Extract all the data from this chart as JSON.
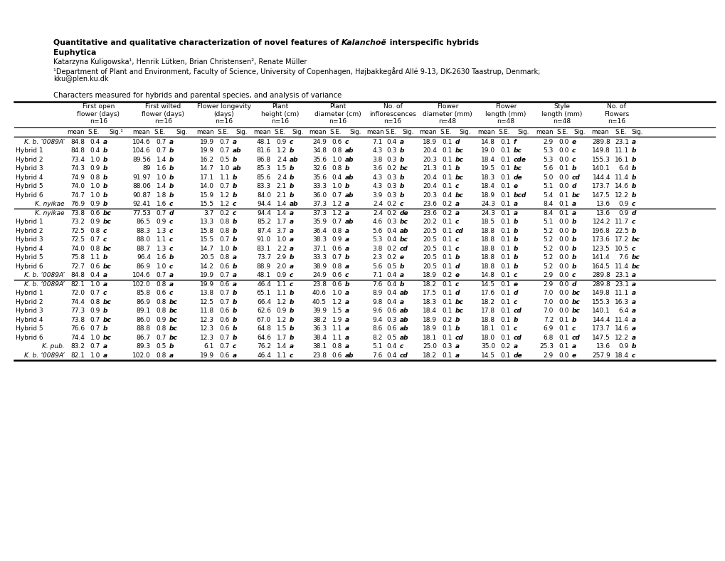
{
  "rows": [
    {
      "label": "K. b. ‘0089A’",
      "italic": true,
      "data": [
        "84.8",
        "0.4",
        "a",
        "104.6",
        "0.7",
        "a",
        "19.9",
        "0.7",
        "a",
        "48.1",
        "0.9",
        "c",
        "24.9",
        "0.6",
        "c",
        "7.1",
        "0.4",
        "a",
        "18.9",
        "0.1",
        "d",
        "14.8",
        "0.1",
        "f",
        "2.9",
        "0.0",
        "e",
        "289.8",
        "23.1",
        "a"
      ],
      "sep_before": false,
      "sep_after": false
    },
    {
      "label": "Hybrid 1",
      "italic": false,
      "data": [
        "84.8",
        "0.4",
        "b",
        "104.6",
        "0.7",
        "b",
        "19.9",
        "0.7",
        "ab",
        "81.6",
        "1.2",
        "b",
        "34.8",
        "0.8",
        "ab",
        "4.3",
        "0.3",
        "b",
        "20.4",
        "0.1",
        "bc",
        "19.0",
        "0.1",
        "bc",
        "5.3",
        "0.0",
        "c",
        "149.8",
        "11.1",
        "b"
      ],
      "sep_before": false,
      "sep_after": false
    },
    {
      "label": "Hybrid 2",
      "italic": false,
      "data": [
        "73.4",
        "1.0",
        "b",
        "89.56",
        "1.4",
        "b",
        "16.2",
        "0.5",
        "b",
        "86.8",
        "2.4",
        "ab",
        "35.6",
        "1.0",
        "ab",
        "3.8",
        "0.3",
        "b",
        "20.3",
        "0.1",
        "bc",
        "18.4",
        "0.1",
        "cde",
        "5.3",
        "0.0",
        "c",
        "155.3",
        "16.1",
        "b"
      ],
      "sep_before": false,
      "sep_after": false
    },
    {
      "label": "Hybrid 3",
      "italic": false,
      "data": [
        "74.3",
        "0.9",
        "b",
        "89",
        "1.6",
        "b",
        "14.7",
        "1.0",
        "ab",
        "85.3",
        "1.5",
        "b",
        "32.6",
        "0.8",
        "b",
        "3.6",
        "0.2",
        "bc",
        "21.3",
        "0.1",
        "b",
        "19.5",
        "0.1",
        "bc",
        "5.6",
        "0.1",
        "b",
        "140.1",
        "6.4",
        "b"
      ],
      "sep_before": false,
      "sep_after": false
    },
    {
      "label": "Hybrid 4",
      "italic": false,
      "data": [
        "74.9",
        "0.8",
        "b",
        "91.97",
        "1.0",
        "b",
        "17.1",
        "1.1",
        "b",
        "85.6",
        "2.4",
        "b",
        "35.6",
        "0.4",
        "ab",
        "4.3",
        "0.3",
        "b",
        "20.4",
        "0.1",
        "bc",
        "18.3",
        "0.1",
        "de",
        "5.0",
        "0.0",
        "cd",
        "144.4",
        "11.4",
        "b"
      ],
      "sep_before": false,
      "sep_after": false
    },
    {
      "label": "Hybrid 5",
      "italic": false,
      "data": [
        "74.0",
        "1.0",
        "b",
        "88.06",
        "1.4",
        "b",
        "14.0",
        "0.7",
        "b",
        "83.3",
        "2.1",
        "b",
        "33.3",
        "1.0",
        "b",
        "4.3",
        "0.3",
        "b",
        "20.4",
        "0.1",
        "c",
        "18.4",
        "0.1",
        "e",
        "5.1",
        "0.0",
        "d",
        "173.7",
        "14.6",
        "b"
      ],
      "sep_before": false,
      "sep_after": false
    },
    {
      "label": "Hybrid 6",
      "italic": false,
      "data": [
        "74.7",
        "1.0",
        "b",
        "90.87",
        "1.8",
        "b",
        "15.9",
        "1.2",
        "b",
        "84.0",
        "2.1",
        "b",
        "36.0",
        "0.7",
        "ab",
        "3.9",
        "0.3",
        "b",
        "20.3",
        "0.4",
        "bc",
        "18.9",
        "0.1",
        "bcd",
        "5.4",
        "0.1",
        "bc",
        "147.5",
        "12.2",
        "b"
      ],
      "sep_before": false,
      "sep_after": false
    },
    {
      "label": "K. nyikae",
      "italic": true,
      "data": [
        "76.9",
        "0.9",
        "b",
        "92.41",
        "1.6",
        "c",
        "15.5",
        "1.2",
        "c",
        "94.4",
        "1.4",
        "ab",
        "37.3",
        "1.2",
        "a",
        "2.4",
        "0.2",
        "c",
        "23.6",
        "0.2",
        "a",
        "24.3",
        "0.1",
        "a",
        "8.4",
        "0.1",
        "a",
        "13.6",
        "0.9",
        "c"
      ],
      "sep_before": false,
      "sep_after": true
    },
    {
      "label": "K. nyikae",
      "italic": true,
      "data": [
        "73.8",
        "0.6",
        "bc",
        "77.53",
        "0.7",
        "d",
        "3.7",
        "0.2",
        "c",
        "94.4",
        "1.4",
        "a",
        "37.3",
        "1.2",
        "a",
        "2.4",
        "0.2",
        "de",
        "23.6",
        "0.2",
        "a",
        "24.3",
        "0.1",
        "a",
        "8.4",
        "0.1",
        "a",
        "13.6",
        "0.9",
        "d"
      ],
      "sep_before": false,
      "sep_after": false
    },
    {
      "label": "Hybrid 1",
      "italic": false,
      "data": [
        "73.2",
        "0.9",
        "bc",
        "86.5",
        "0.9",
        "c",
        "13.3",
        "0.8",
        "b",
        "85.2",
        "1.7",
        "a",
        "35.9",
        "0.7",
        "ab",
        "4.6",
        "0.3",
        "bc",
        "20.2",
        "0.1",
        "c",
        "18.5",
        "0.1",
        "b",
        "5.1",
        "0.0",
        "b",
        "124.2",
        "11.7",
        "c"
      ],
      "sep_before": false,
      "sep_after": false
    },
    {
      "label": "Hybrid 2",
      "italic": false,
      "data": [
        "72.5",
        "0.8",
        "c",
        "88.3",
        "1.3",
        "c",
        "15.8",
        "0.8",
        "b",
        "87.4",
        "3.7",
        "a",
        "36.4",
        "0.8",
        "a",
        "5.6",
        "0.4",
        "ab",
        "20.5",
        "0.1",
        "cd",
        "18.8",
        "0.1",
        "b",
        "5.2",
        "0.0",
        "b",
        "196.8",
        "22.5",
        "b"
      ],
      "sep_before": false,
      "sep_after": false
    },
    {
      "label": "Hybrid 3",
      "italic": false,
      "data": [
        "72.5",
        "0.7",
        "c",
        "88.0",
        "1.1",
        "c",
        "15.5",
        "0.7",
        "b",
        "91.0",
        "1.0",
        "a",
        "38.3",
        "0.9",
        "a",
        "5.3",
        "0.4",
        "bc",
        "20.5",
        "0.1",
        "c",
        "18.8",
        "0.1",
        "b",
        "5.2",
        "0.0",
        "b",
        "173.6",
        "17.2",
        "bc"
      ],
      "sep_before": false,
      "sep_after": false
    },
    {
      "label": "Hybrid 4",
      "italic": false,
      "data": [
        "74.0",
        "0.8",
        "bc",
        "88.7",
        "1.3",
        "c",
        "14.7",
        "1.0",
        "b",
        "83.1",
        "2.2",
        "a",
        "37.1",
        "0.6",
        "a",
        "3.8",
        "0.2",
        "cd",
        "20.5",
        "0.1",
        "c",
        "18.8",
        "0.1",
        "b",
        "5.2",
        "0.0",
        "b",
        "123.5",
        "10.5",
        "c"
      ],
      "sep_before": false,
      "sep_after": false
    },
    {
      "label": "Hybrid 5",
      "italic": false,
      "data": [
        "75.8",
        "1.1",
        "b",
        "96.4",
        "1.6",
        "b",
        "20.5",
        "0.8",
        "a",
        "73.7",
        "2.9",
        "b",
        "33.3",
        "0.7",
        "b",
        "2.3",
        "0.2",
        "e",
        "20.5",
        "0.1",
        "b",
        "18.8",
        "0.1",
        "b",
        "5.2",
        "0.0",
        "b",
        "141.4",
        "7.6",
        "bc"
      ],
      "sep_before": false,
      "sep_after": false
    },
    {
      "label": "Hybrid 6",
      "italic": false,
      "data": [
        "72.7",
        "0.6",
        "bc",
        "86.9",
        "1.0",
        "c",
        "14.2",
        "0.6",
        "b",
        "88.9",
        "2.0",
        "a",
        "38.9",
        "0.8",
        "a",
        "5.6",
        "0.5",
        "b",
        "20.5",
        "0.1",
        "d",
        "18.8",
        "0.1",
        "b",
        "5.2",
        "0.0",
        "b",
        "164.5",
        "11.4",
        "bc"
      ],
      "sep_before": false,
      "sep_after": false
    },
    {
      "label": "K. b. ‘0089A’",
      "italic": true,
      "data": [
        "84.8",
        "0.4",
        "a",
        "104.6",
        "0.7",
        "a",
        "19.9",
        "0.7",
        "a",
        "48.1",
        "0.9",
        "c",
        "24.9",
        "0.6",
        "c",
        "7.1",
        "0.4",
        "a",
        "18.9",
        "0.2",
        "e",
        "14.8",
        "0.1",
        "c",
        "2.9",
        "0.0",
        "c",
        "289.8",
        "23.1",
        "a"
      ],
      "sep_before": false,
      "sep_after": true
    },
    {
      "label": "K. b. ‘0089A’",
      "italic": true,
      "data": [
        "82.1",
        "1.0",
        "a",
        "102.0",
        "0.8",
        "a",
        "19.9",
        "0.6",
        "a",
        "46.4",
        "1.1",
        "c",
        "23.8",
        "0.6",
        "b",
        "7.6",
        "0.4",
        "b",
        "18.2",
        "0.1",
        "c",
        "14.5",
        "0.1",
        "e",
        "2.9",
        "0.0",
        "d",
        "289.8",
        "23.1",
        "a"
      ],
      "sep_before": false,
      "sep_after": false
    },
    {
      "label": "Hybrid 1",
      "italic": false,
      "data": [
        "72.0",
        "0.7",
        "c",
        "85.8",
        "0.6",
        "c",
        "13.8",
        "0.7",
        "b",
        "65.1",
        "1.1",
        "b",
        "40.6",
        "1.0",
        "a",
        "8.9",
        "0.4",
        "ab",
        "17.5",
        "0.1",
        "d",
        "17.6",
        "0.1",
        "d",
        "7.0",
        "0.0",
        "bc",
        "149.8",
        "11.1",
        "a"
      ],
      "sep_before": false,
      "sep_after": false
    },
    {
      "label": "Hybrid 2",
      "italic": false,
      "data": [
        "74.4",
        "0.8",
        "bc",
        "86.9",
        "0.8",
        "bc",
        "12.5",
        "0.7",
        "b",
        "66.4",
        "1.2",
        "b",
        "40.5",
        "1.2",
        "a",
        "9.8",
        "0.4",
        "a",
        "18.3",
        "0.1",
        "bc",
        "18.2",
        "0.1",
        "c",
        "7.0",
        "0.0",
        "bc",
        "155.3",
        "16.3",
        "a"
      ],
      "sep_before": false,
      "sep_after": false
    },
    {
      "label": "Hybrid 3",
      "italic": false,
      "data": [
        "77.3",
        "0.9",
        "b",
        "89.1",
        "0.8",
        "bc",
        "11.8",
        "0.6",
        "b",
        "62.6",
        "0.9",
        "b",
        "39.9",
        "1.5",
        "a",
        "9.6",
        "0.6",
        "ab",
        "18.4",
        "0.1",
        "bc",
        "17.8",
        "0.1",
        "cd",
        "7.0",
        "0.0",
        "bc",
        "140.1",
        "6.4",
        "a"
      ],
      "sep_before": false,
      "sep_after": false
    },
    {
      "label": "Hybrid 4",
      "italic": false,
      "data": [
        "73.8",
        "0.7",
        "bc",
        "86.0",
        "0.9",
        "bc",
        "12.3",
        "0.6",
        "b",
        "67.0",
        "1.2",
        "b",
        "38.2",
        "1.9",
        "a",
        "9.4",
        "0.3",
        "ab",
        "18.9",
        "0.2",
        "b",
        "18.8",
        "0.1",
        "b",
        "7.2",
        "0.1",
        "b",
        "144.4",
        "11.4",
        "a"
      ],
      "sep_before": false,
      "sep_after": false
    },
    {
      "label": "Hybrid 5",
      "italic": false,
      "data": [
        "76.6",
        "0.7",
        "b",
        "88.8",
        "0.8",
        "bc",
        "12.3",
        "0.6",
        "b",
        "64.8",
        "1.5",
        "b",
        "36.3",
        "1.1",
        "a",
        "8.6",
        "0.6",
        "ab",
        "18.9",
        "0.1",
        "b",
        "18.1",
        "0.1",
        "c",
        "6.9",
        "0.1",
        "c",
        "173.7",
        "14.6",
        "a"
      ],
      "sep_before": false,
      "sep_after": false
    },
    {
      "label": "Hybrid 6",
      "italic": false,
      "data": [
        "74.4",
        "1.0",
        "bc",
        "86.7",
        "0.7",
        "bc",
        "12.3",
        "0.7",
        "b",
        "64.6",
        "1.7",
        "b",
        "38.4",
        "1.1",
        "a",
        "8.2",
        "0.5",
        "ab",
        "18.1",
        "0.1",
        "cd",
        "18.0",
        "0.1",
        "cd",
        "6.8",
        "0.1",
        "cd",
        "147.5",
        "12.2",
        "a"
      ],
      "sep_before": false,
      "sep_after": false
    },
    {
      "label": "K. pub.",
      "italic": true,
      "data": [
        "83.2",
        "0.7",
        "a",
        "89.3",
        "0.5",
        "b",
        "6.1",
        "0.7",
        "c",
        "76.2",
        "1.4",
        "a",
        "38.1",
        "0.8",
        "a",
        "5.1",
        "0.4",
        "c",
        "25.0",
        "0.3",
        "a",
        "35.0",
        "0.2",
        "a",
        "25.3",
        "0.1",
        "a",
        "13.6",
        "0.9",
        "b"
      ],
      "sep_before": false,
      "sep_after": false
    },
    {
      "label": "K. b. ‘0089A’",
      "italic": true,
      "data": [
        "82.1",
        "1.0",
        "a",
        "102.0",
        "0.8",
        "a",
        "19.9",
        "0.6",
        "a",
        "46.4",
        "1.1",
        "c",
        "23.8",
        "0.6",
        "ab",
        "7.6",
        "0.4",
        "cd",
        "18.2",
        "0.1",
        "a",
        "14.5",
        "0.1",
        "de",
        "2.9",
        "0.0",
        "e",
        "257.9",
        "18.4",
        "c"
      ],
      "sep_before": false,
      "sep_after": false
    }
  ]
}
